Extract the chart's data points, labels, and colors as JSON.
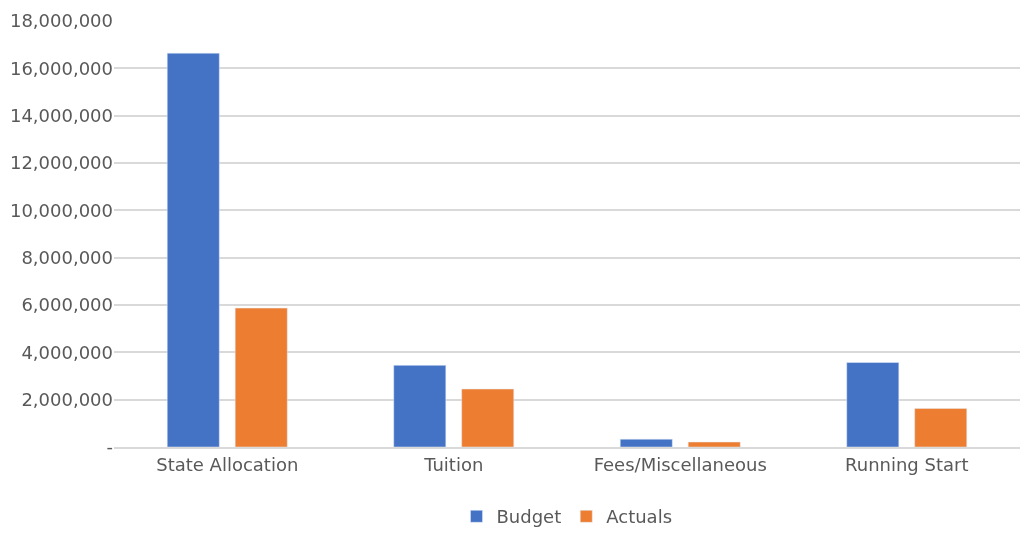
{
  "chart_data": {
    "type": "bar",
    "categories": [
      "State Allocation",
      "Tuition",
      "Fees/Miscellaneous",
      "Running Start"
    ],
    "series": [
      {
        "name": "Budget",
        "color": "#4472c4",
        "values": [
          16640000,
          3450000,
          330000,
          3570000
        ]
      },
      {
        "name": "Actuals",
        "color": "#ed7d31",
        "values": [
          5870000,
          2450000,
          210000,
          1630000
        ]
      }
    ],
    "ylim": [
      0,
      18000000
    ],
    "yticks": [
      {
        "value": 0,
        "label": "-"
      },
      {
        "value": 2000000,
        "label": "2,000,000"
      },
      {
        "value": 4000000,
        "label": "4,000,000"
      },
      {
        "value": 6000000,
        "label": "6,000,000"
      },
      {
        "value": 8000000,
        "label": "8,000,000"
      },
      {
        "value": 10000000,
        "label": "10,000,000"
      },
      {
        "value": 12000000,
        "label": "12,000,000"
      },
      {
        "value": 14000000,
        "label": "14,000,000"
      },
      {
        "value": 16000000,
        "label": "16,000,000"
      },
      {
        "value": 18000000,
        "label": "18,000,000"
      }
    ],
    "grid": "y",
    "legend": "bottom"
  }
}
